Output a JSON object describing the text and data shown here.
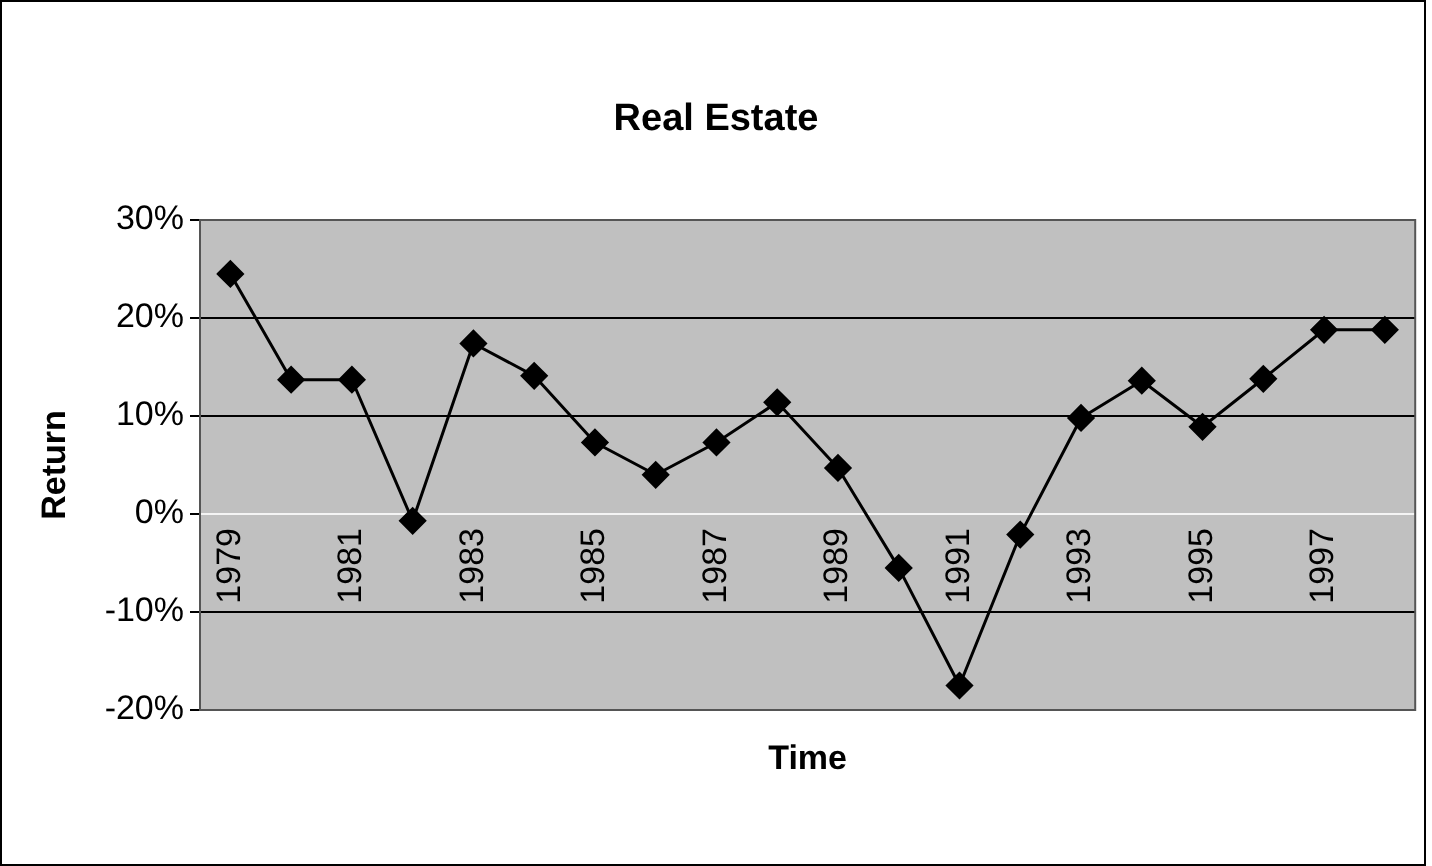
{
  "chart_data": {
    "type": "line",
    "title": "Real Estate",
    "xlabel": "Time",
    "ylabel": "Return",
    "categories": [
      "1979",
      null,
      "1981",
      null,
      "1983",
      null,
      "1985",
      null,
      "1987",
      null,
      "1989",
      null,
      "1991",
      null,
      "1993",
      null,
      "1995",
      null,
      "1997",
      null
    ],
    "series": [
      {
        "color": "#000000",
        "values": [
          24.5,
          13.7,
          13.7,
          -0.7,
          17.4,
          14.1,
          7.3,
          4.0,
          7.3,
          11.4,
          4.7,
          -5.5,
          -17.5,
          -2.1,
          9.8,
          13.6,
          8.9,
          13.8,
          18.8,
          18.8
        ]
      }
    ],
    "ylim": [
      -20,
      30
    ],
    "yticks": [
      {
        "value": -20,
        "label": "-20%"
      },
      {
        "value": -10,
        "label": "-10%"
      },
      {
        "value": 0,
        "label": "0%"
      },
      {
        "value": 10,
        "label": "10%"
      },
      {
        "value": 20,
        "label": "20%"
      },
      {
        "value": 30,
        "label": "30%"
      }
    ],
    "grid": "y",
    "legend": false,
    "marker": "diamond",
    "line_style": "solid"
  }
}
